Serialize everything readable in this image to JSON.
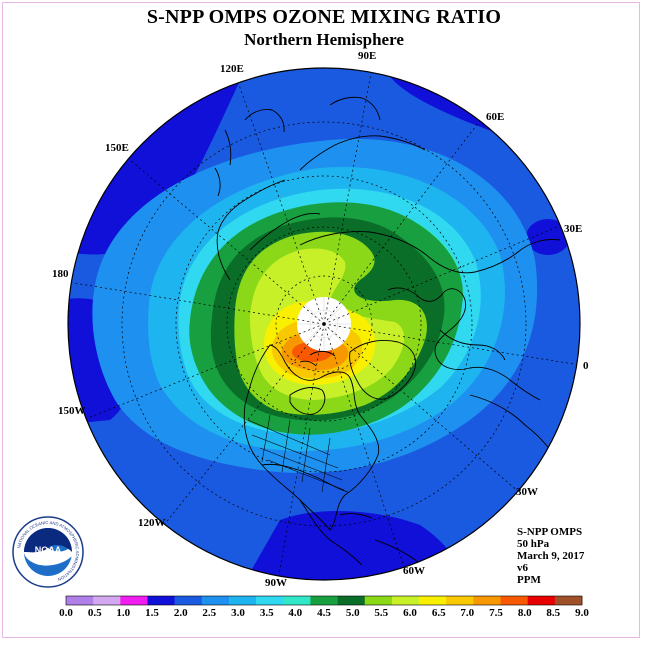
{
  "header": {
    "title": "S-NPP OMPS OZONE MIXING RATIO",
    "subtitle": "Northern Hemisphere"
  },
  "map": {
    "projection": "polar stereographic, north pole",
    "longitude_labels": [
      "90E",
      "60E",
      "30E",
      "0",
      "30W",
      "60W",
      "90W",
      "120W",
      "150W",
      "180",
      "150E",
      "120E"
    ],
    "no_data_region": "polar cap",
    "overlays": [
      "coastlines",
      "country borders",
      "US state borders",
      "latitude circles",
      "meridians"
    ]
  },
  "info": {
    "instrument": "S-NPP OMPS",
    "level": "50 hPa",
    "date": "March 9, 2017",
    "version": "v6",
    "units": "PPM"
  },
  "colorbar": {
    "labels": [
      "0.0",
      "0.5",
      "1.0",
      "1.5",
      "2.0",
      "2.5",
      "3.0",
      "3.5",
      "4.0",
      "4.5",
      "5.0",
      "5.5",
      "6.0",
      "6.5",
      "7.0",
      "7.5",
      "8.0",
      "8.5",
      "9.0"
    ],
    "colors": [
      "#b07fe8",
      "#d4a8f0",
      "#f01cf0",
      "#1010d8",
      "#1a5ae0",
      "#1e90f0",
      "#1eb4f0",
      "#30d8f0",
      "#30e8c8",
      "#18a040",
      "#0a6e28",
      "#8ad818",
      "#c8f028",
      "#f8f000",
      "#f8c800",
      "#f89800",
      "#f85800",
      "#e80000",
      "#a05028"
    ]
  },
  "logo": {
    "name": "NOAA",
    "ring_text": "NATIONAL OCEANIC AND ATMOSPHERIC ADMINISTRATION",
    "ring_text_bottom": "U.S. DEPARTMENT OF COMMERCE"
  }
}
